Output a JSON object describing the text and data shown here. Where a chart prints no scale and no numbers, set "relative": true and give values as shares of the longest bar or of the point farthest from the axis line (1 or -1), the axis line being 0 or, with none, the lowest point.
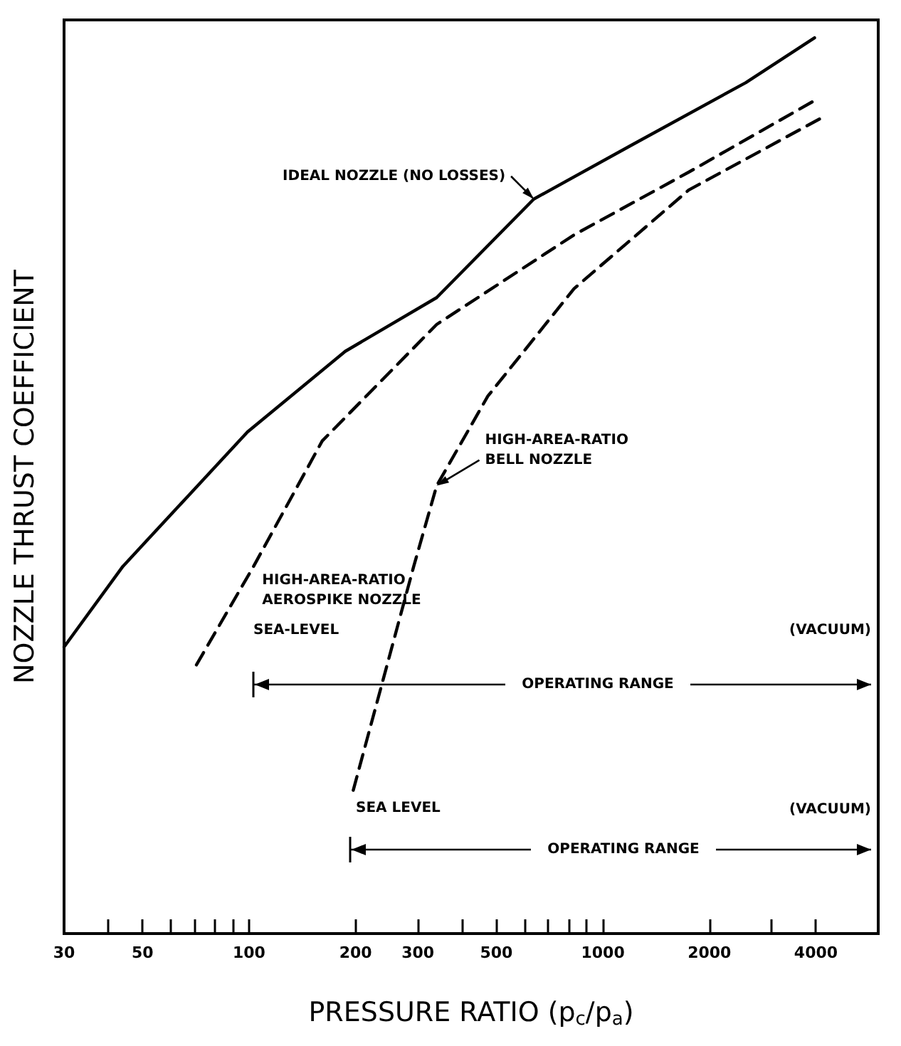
{
  "chart_data": {
    "type": "line",
    "relative": true,
    "xlabel": "PRESSURE RATIO (p$_{c}$/p$_{a}$)",
    "ylabel": "NOZZLE THRUST COEFFICIENT",
    "log": "x",
    "xlim": [
      30,
      6000
    ],
    "xticks": [
      30,
      {
        "value": 40,
        "label": null
      },
      50,
      {
        "value": 60,
        "label": null
      },
      {
        "value": 70,
        "label": null
      },
      {
        "value": 80,
        "label": null
      },
      {
        "value": 90,
        "label": null
      },
      100,
      200,
      300,
      {
        "value": 400,
        "label": null
      },
      500,
      {
        "value": 600,
        "label": null
      },
      {
        "value": 700,
        "label": null
      },
      {
        "value": 800,
        "label": null
      },
      {
        "value": 900,
        "label": null
      },
      1000,
      2000,
      {
        "value": 3000,
        "label": null
      },
      4000
    ],
    "grid": false,
    "legend": false,
    "marker": "none",
    "series": [
      {
        "name": "IDEAL NOZZLE (NO LOSSES)",
        "color": "#000000",
        "line_style": "solid",
        "x": [
          30,
          44,
          99,
          187,
          339,
          638,
          1202,
          2535,
          3965
        ],
        "values": [
          0.32,
          0.41,
          0.56,
          0.65,
          0.71,
          0.82,
          0.88,
          0.95,
          1.0
        ]
      },
      {
        "name": "HIGH-AREA-RATIO AEROSPIKE NOZZLE",
        "color": "#000000",
        "line_style": "dashed",
        "x": [
          71,
          103,
          161,
          339,
          829,
          1747,
          3965
        ],
        "values": [
          0.3,
          0.41,
          0.55,
          0.68,
          0.78,
          0.85,
          0.93
        ]
      },
      {
        "name": "HIGH-AREA-RATIO BELL NOZZLE",
        "color": "#000000",
        "line_style": "dashed",
        "x": [
          197,
          292,
          339,
          473,
          829,
          1747,
          4120
        ],
        "values": [
          0.16,
          0.41,
          0.5,
          0.6,
          0.72,
          0.83,
          0.91
        ]
      }
    ],
    "annotations": [
      "SEA-LEVEL",
      "(VACUUM)",
      "OPERATING RANGE",
      "SEA LEVEL",
      "(VACUUM)",
      "OPERATING RANGE"
    ]
  }
}
